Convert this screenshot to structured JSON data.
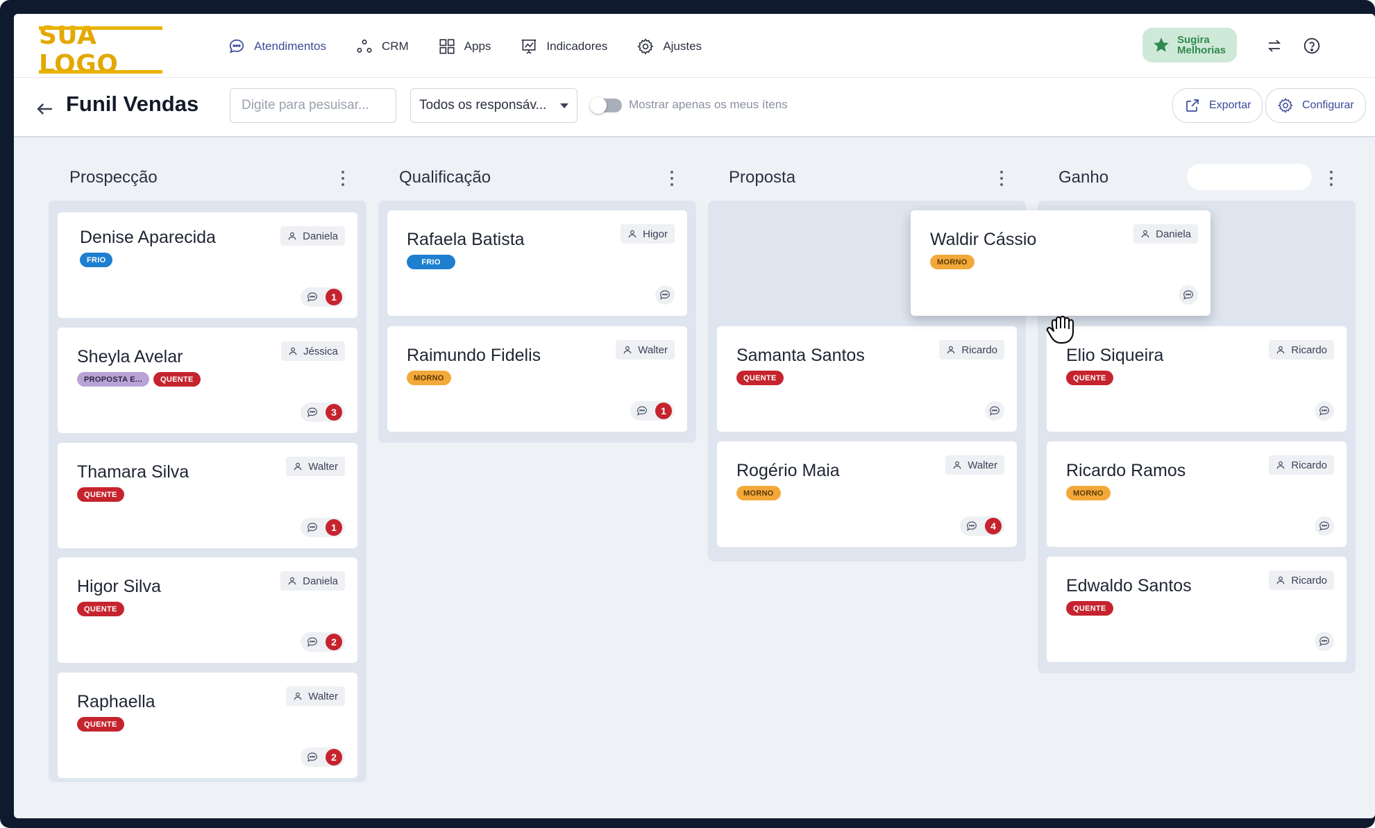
{
  "logo": {
    "text": "SUA LOGO"
  },
  "nav": [
    {
      "label": "Atendimentos",
      "icon": "chat-bubble-icon"
    },
    {
      "label": "CRM",
      "icon": "crm-nodes-icon"
    },
    {
      "label": "Apps",
      "icon": "grid-icon"
    },
    {
      "label": "Indicadores",
      "icon": "chart-board-icon"
    },
    {
      "label": "Ajustes",
      "icon": "gear-icon"
    }
  ],
  "suggest": {
    "line1": "Sugira",
    "line2": "Melhorias"
  },
  "toolbar": {
    "title": "Funil Vendas",
    "search_placeholder": "Digite para pesuisar...",
    "responsible_select": "Todos os responsáv...",
    "toggle_label": "Mostrar apenas os meus ítens",
    "export_label": "Exportar",
    "configure_label": "Configurar"
  },
  "columns": [
    {
      "title": "Prospecção",
      "cards": [
        {
          "name": "Denise Aparecida",
          "owner": "Daniela",
          "tags": [
            {
              "label": "FRIO",
              "kind": "frio"
            }
          ],
          "count": "1"
        },
        {
          "name": "Sheyla Avelar",
          "owner": "Jéssica",
          "tags": [
            {
              "label": "PROPOSTA E...",
              "kind": "proposta"
            },
            {
              "label": "QUENTE",
              "kind": "quente"
            }
          ],
          "count": "3"
        },
        {
          "name": "Thamara Silva",
          "owner": "Walter",
          "tags": [
            {
              "label": "QUENTE",
              "kind": "quente"
            }
          ],
          "count": "1"
        },
        {
          "name": "Higor Silva",
          "owner": "Daniela",
          "tags": [
            {
              "label": "QUENTE",
              "kind": "quente"
            }
          ],
          "count": "2"
        },
        {
          "name": "Raphaella",
          "owner": "Walter",
          "tags": [
            {
              "label": "QUENTE",
              "kind": "quente"
            }
          ],
          "count": "2"
        }
      ]
    },
    {
      "title": "Qualificação",
      "cards": [
        {
          "name": "Rafaela Batista",
          "owner": "Higor",
          "tags": [
            {
              "label": "FRIO",
              "kind": "frio"
            }
          ],
          "count": ""
        },
        {
          "name": "Raimundo Fidelis",
          "owner": "Walter",
          "tags": [
            {
              "label": "MORNO",
              "kind": "morno"
            }
          ],
          "count": "1"
        }
      ]
    },
    {
      "title": "Proposta",
      "cards": [
        {
          "name": "Samanta Santos",
          "owner": "Ricardo",
          "tags": [
            {
              "label": "QUENTE",
              "kind": "quente"
            }
          ],
          "count": ""
        },
        {
          "name": "Rogério Maia",
          "owner": "Walter",
          "tags": [
            {
              "label": "MORNO",
              "kind": "morno"
            }
          ],
          "count": "4"
        }
      ]
    },
    {
      "title": "Ganho",
      "cards": [
        {
          "name": "Elio Siqueira",
          "owner": "Ricardo",
          "tags": [
            {
              "label": "QUENTE",
              "kind": "quente"
            }
          ],
          "count": ""
        },
        {
          "name": "Ricardo Ramos",
          "owner": "Ricardo",
          "tags": [
            {
              "label": "MORNO",
              "kind": "morno"
            }
          ],
          "count": ""
        },
        {
          "name": "Edwaldo Santos",
          "owner": "Ricardo",
          "tags": [
            {
              "label": "QUENTE",
              "kind": "quente"
            }
          ],
          "count": ""
        }
      ]
    }
  ],
  "dragging_card": {
    "name": "Waldir Cássio",
    "owner": "Daniela",
    "tags": [
      {
        "label": "MORNO",
        "kind": "morno"
      }
    ],
    "count": ""
  },
  "colors": {
    "accent": "#3b4a9a",
    "frio": "#1e7fd0",
    "quente": "#c5242e",
    "morno": "#f3a93a",
    "logo": "#e2a800"
  }
}
